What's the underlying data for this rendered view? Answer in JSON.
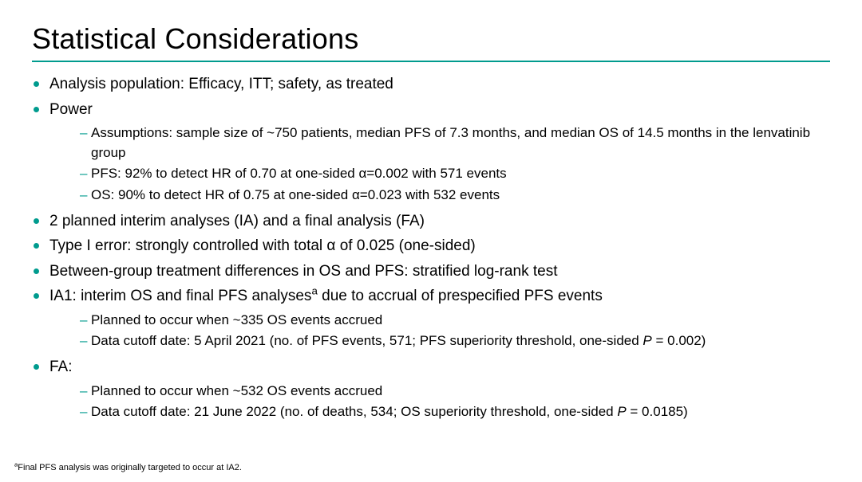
{
  "colors": {
    "accent": "#009b8e",
    "text": "#000000",
    "background": "#ffffff"
  },
  "typography": {
    "title_fontsize_pt": 27,
    "lvl1_fontsize_pt": 14,
    "lvl2_fontsize_pt": 13,
    "footnote_fontsize_pt": 8,
    "font_family": "Arial"
  },
  "title": "Statistical Considerations",
  "bullets": {
    "b1": "Analysis population: Efficacy, ITT; safety, as treated",
    "b2": "Power",
    "b2_subs": {
      "s1": "Assumptions: sample size of ~750 patients, median PFS of 7.3 months, and median OS of 14.5 months in the lenvatinib group",
      "s2": "PFS: 92% to detect HR of 0.70 at one-sided α=0.002 with 571 events",
      "s3": "OS: 90% to detect HR of 0.75 at one-sided α=0.023 with 532 events"
    },
    "b3": "2 planned interim analyses (IA) and a final analysis (FA)",
    "b4": "Type I error: strongly controlled with total α of 0.025 (one-sided)",
    "b5": "Between-group treatment differences in OS and PFS: stratified log-rank test",
    "b6_pre": "IA1: interim OS and final PFS analyses",
    "b6_sup": "a",
    "b6_post": " due to accrual of prespecified PFS events",
    "b6_subs": {
      "s1": "Planned to occur when ~335 OS events accrued",
      "s2_pre": "Data cutoff date: 5 April 2021 (no. of PFS events, 571; PFS superiority threshold, one-sided ",
      "s2_p": "P",
      "s2_post": " = 0.002)"
    },
    "b7": "FA:",
    "b7_subs": {
      "s1": "Planned to occur when ~532 OS events accrued",
      "s2_pre": "Data cutoff date: 21 June 2022 (no. of deaths, 534; OS superiority threshold, one-sided ",
      "s2_p": "P",
      "s2_post": " = 0.0185)"
    }
  },
  "footnote": {
    "sup": "a",
    "text": "Final PFS analysis was originally targeted to occur at IA2."
  }
}
